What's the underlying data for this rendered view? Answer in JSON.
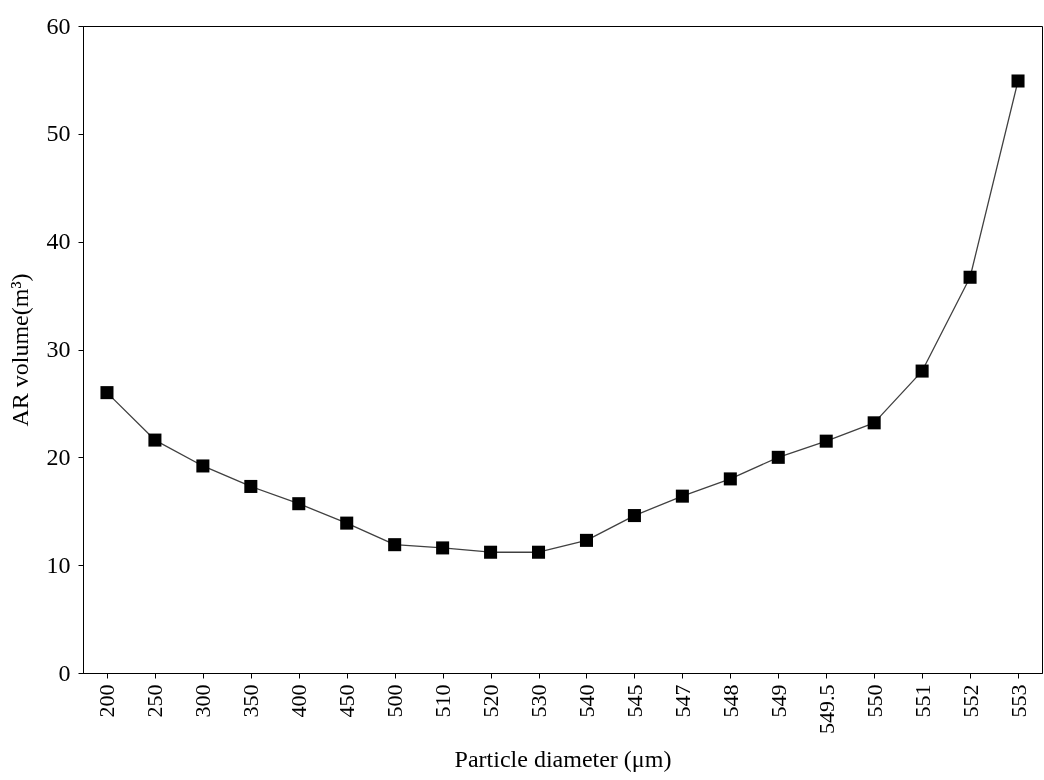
{
  "chart_data": {
    "type": "line",
    "xlabel": "Particle diameter (μm)",
    "ylabel": "AR volume(m³)",
    "categories": [
      "200",
      "250",
      "300",
      "350",
      "400",
      "450",
      "500",
      "510",
      "520",
      "530",
      "540",
      "545",
      "547",
      "548",
      "549",
      "549.5",
      "550",
      "551",
      "552",
      "553"
    ],
    "series": [
      {
        "color": "#000000",
        "values": [
          26.0,
          21.6,
          19.2,
          17.3,
          15.7,
          13.9,
          11.9,
          11.6,
          11.2,
          11.2,
          12.3,
          14.6,
          16.4,
          18.0,
          20.0,
          21.5,
          23.2,
          28.0,
          36.7,
          54.9
        ]
      }
    ],
    "ylim": [
      0,
      60
    ],
    "yticks": [
      0,
      10,
      20,
      30,
      40,
      50,
      60
    ],
    "grid": false,
    "marker": "square",
    "line_style": "solid"
  }
}
